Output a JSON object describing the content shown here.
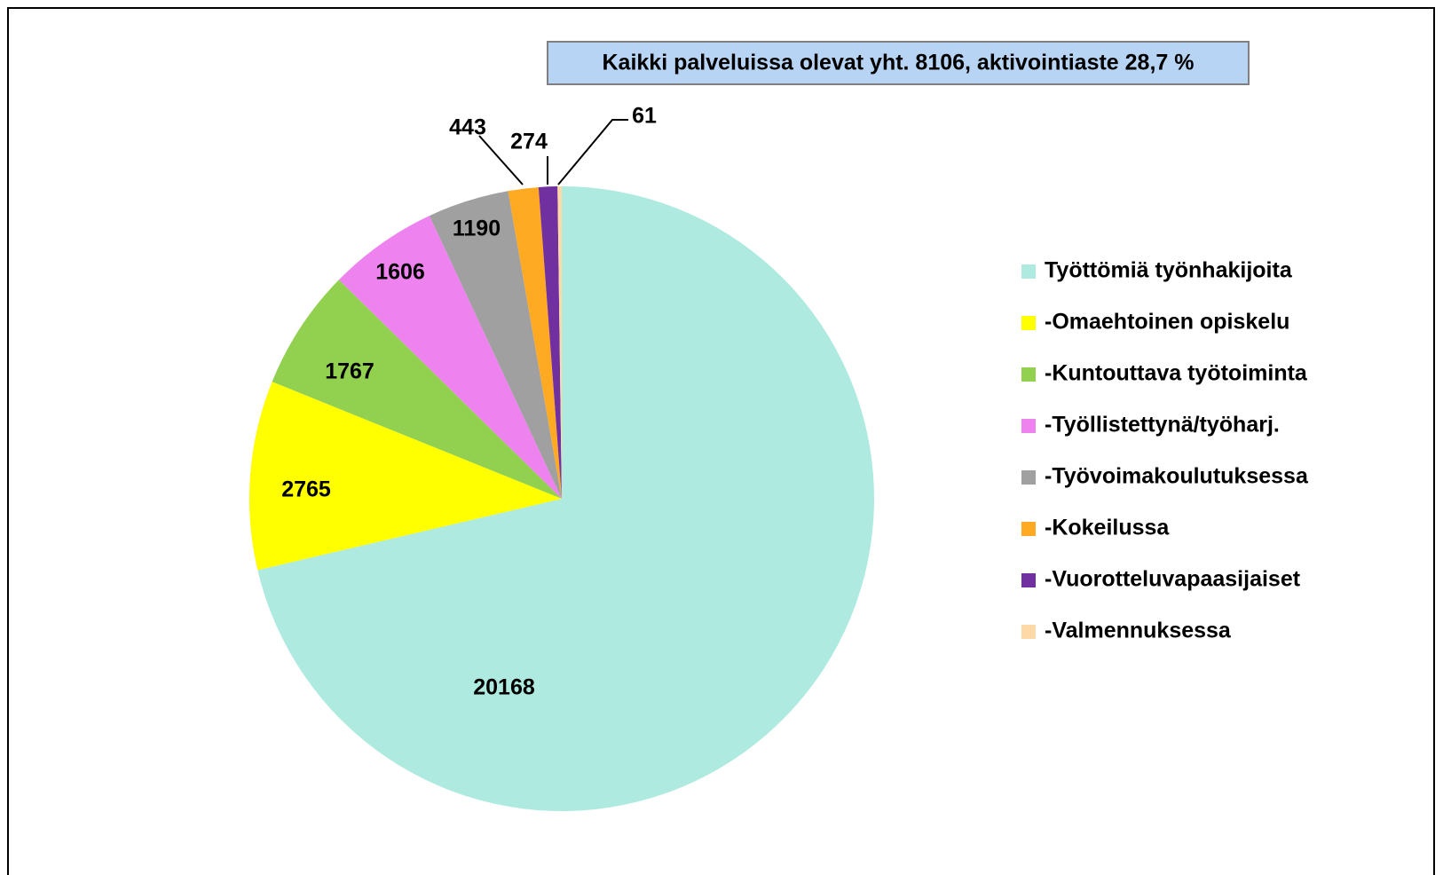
{
  "chart_data": {
    "type": "pie",
    "annotation": "Kaikki palveluissa olevat yht. 8106, aktivointiaste 28,7 %",
    "categories": [
      "Työttömiä työnhakijoita",
      "-Omaehtoinen opiskelu",
      "-Kuntouttava työtoiminta",
      "-Työllistettynä/työharj.",
      "-Työvoimakoulutuksessa",
      "-Kokeilussa",
      "-Vuorotteluvapaasijaiset",
      "-Valmennuksessa"
    ],
    "values": [
      20168,
      2765,
      1767,
      1606,
      1190,
      443,
      274,
      61
    ],
    "colors": [
      "#aeeadf",
      "#ffff00",
      "#92d050",
      "#ee82ee",
      "#a0a0a0",
      "#ffaa22",
      "#7030a0",
      "#fcd9a6"
    ],
    "legend": "right"
  }
}
